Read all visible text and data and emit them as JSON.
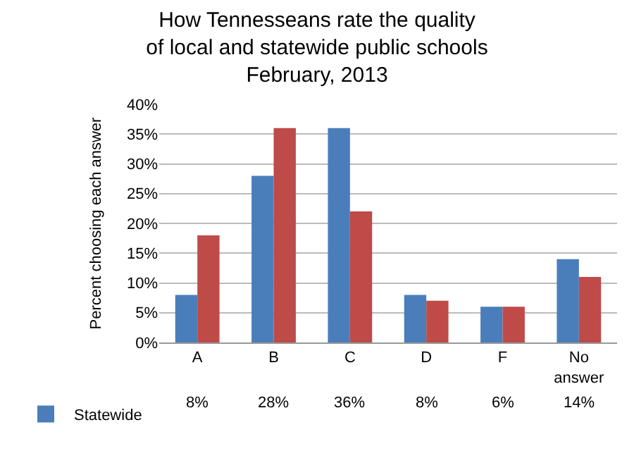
{
  "chart_data": {
    "type": "bar",
    "title": "How Tennesseans rate the quality\nof local and statewide public schools\nFebruary, 2013",
    "ylabel": "Percent choosing each answer",
    "categories": [
      "A",
      "B",
      "C",
      "D",
      "F",
      "No answer"
    ],
    "series": [
      {
        "name": "Statewide",
        "color": "#4a7ebb",
        "values": [
          8,
          28,
          36,
          8,
          6,
          14
        ],
        "value_labels": [
          "8%",
          "28%",
          "36%",
          "8%",
          "6%",
          "14%"
        ]
      },
      {
        "color": "#be4b48",
        "values": [
          18,
          36,
          22,
          7,
          6,
          11
        ]
      }
    ],
    "ylim": [
      0,
      40
    ],
    "yticks": [
      {
        "value": 0,
        "label": "0%"
      },
      {
        "value": 5,
        "label": "5%"
      },
      {
        "value": 10,
        "label": "10%"
      },
      {
        "value": 15,
        "label": "15%"
      },
      {
        "value": 20,
        "label": "20%"
      },
      {
        "value": 25,
        "label": "25%"
      },
      {
        "value": 30,
        "label": "30%"
      },
      {
        "value": 35,
        "label": "35%"
      },
      {
        "value": 40,
        "label": "40%"
      }
    ],
    "grid": "y",
    "legend": "bottom left"
  }
}
